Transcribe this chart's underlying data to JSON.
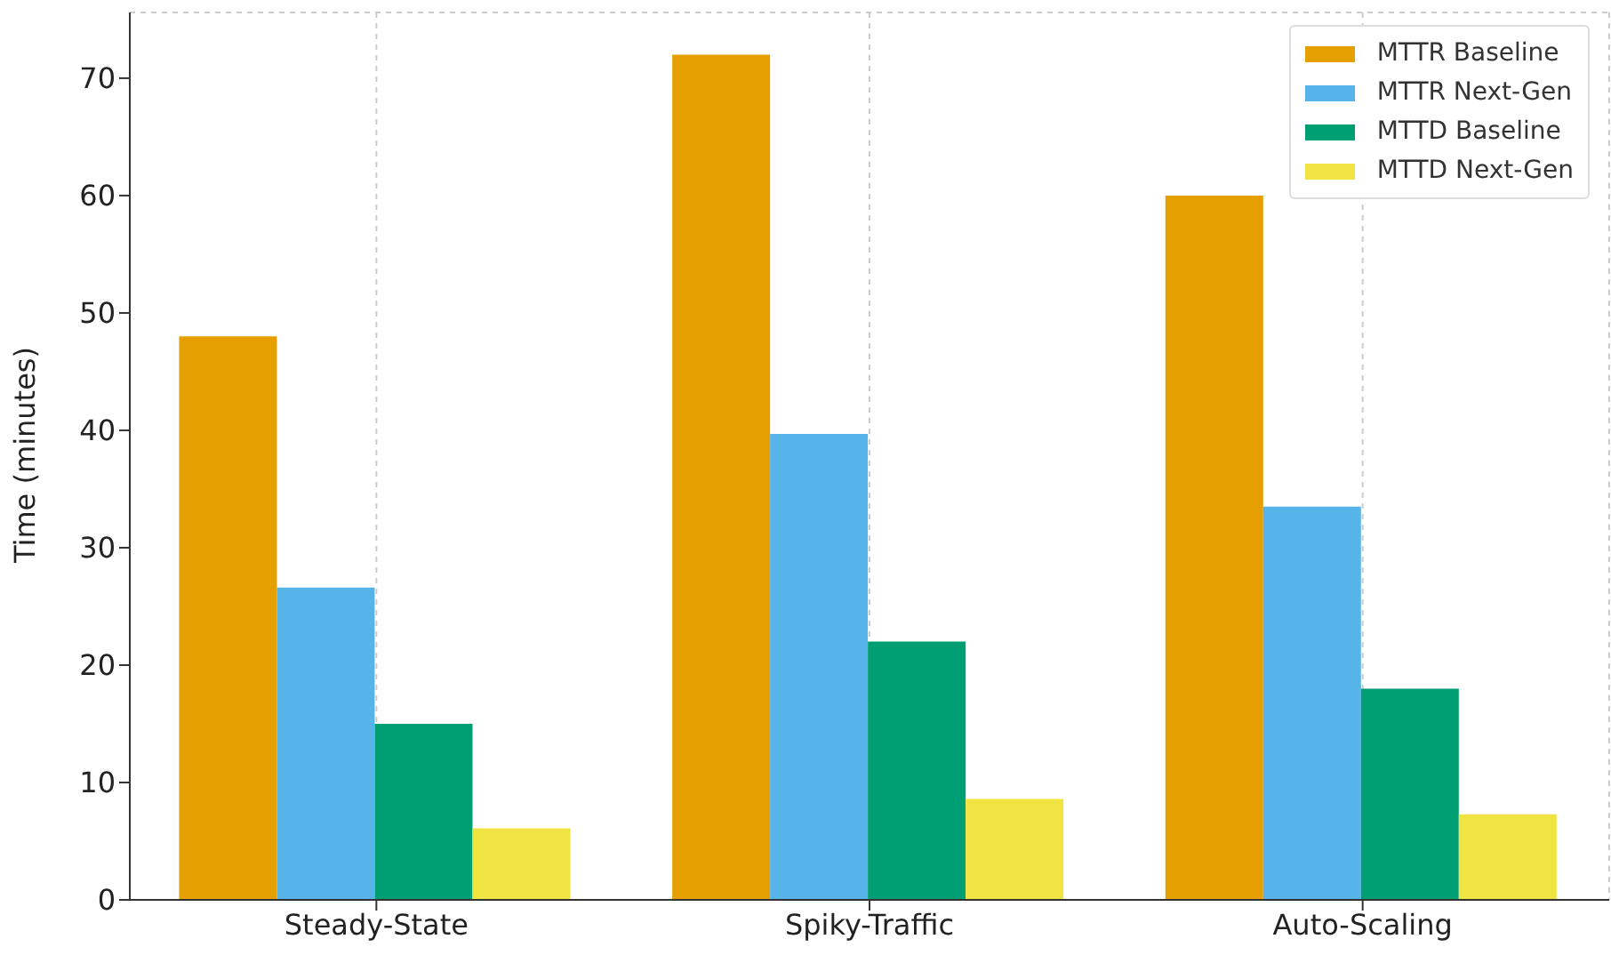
{
  "chart_data": {
    "type": "bar",
    "ylabel": "Time (minutes)",
    "categories": [
      "Steady-State",
      "Spiky-Traffic",
      "Auto-Scaling"
    ],
    "series": [
      {
        "name": "MTTR Baseline",
        "color": "#e69f00",
        "values": [
          48,
          72,
          60
        ]
      },
      {
        "name": "MTTR Next-Gen",
        "color": "#56b4e9",
        "values": [
          26.6,
          39.7,
          33.5
        ]
      },
      {
        "name": "MTTD Baseline",
        "color": "#009e73",
        "values": [
          15,
          22,
          18
        ]
      },
      {
        "name": "MTTD Next-Gen",
        "color": "#f0e442",
        "values": [
          6.1,
          8.6,
          7.3
        ]
      }
    ],
    "ylim": [
      0,
      75.6
    ],
    "yticks": [
      0,
      10,
      20,
      30,
      40,
      50,
      60,
      70
    ],
    "grid": true,
    "legend": "top right"
  }
}
